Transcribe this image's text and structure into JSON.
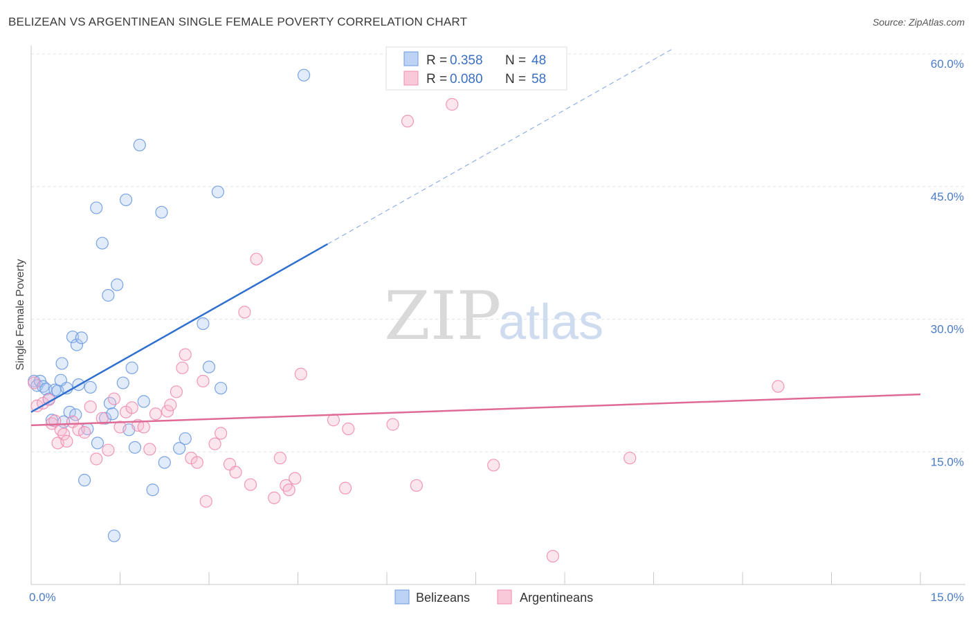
{
  "header": {
    "title": "BELIZEAN VS ARGENTINEAN SINGLE FEMALE POVERTY CORRELATION CHART",
    "source": "Source: ZipAtlas.com"
  },
  "watermark": {
    "zip": "ZIP",
    "atlas": "atlas"
  },
  "legend_top": [
    {
      "r_label": "R = ",
      "r_value": "0.358",
      "n_label": "N = ",
      "n_value": "48"
    },
    {
      "r_label": "R = ",
      "r_value": "0.080",
      "n_label": "N = ",
      "n_value": "58"
    }
  ],
  "chart_data": {
    "type": "scatter",
    "title": "BELIZEAN VS ARGENTINEAN SINGLE FEMALE POVERTY CORRELATION CHART",
    "ylabel": "Single Female Poverty",
    "xlabel": "",
    "xlim": [
      0,
      15
    ],
    "ylim": [
      0,
      60
    ],
    "x_tick_labels": [
      {
        "value": 0,
        "label": "0.0%"
      },
      {
        "value": 15,
        "label": "15.0%"
      }
    ],
    "y_tick_labels": [
      {
        "value": 15,
        "label": "15.0%"
      },
      {
        "value": 30,
        "label": "30.0%"
      },
      {
        "value": 45,
        "label": "45.0%"
      },
      {
        "value": 60,
        "label": "60.0%"
      }
    ],
    "grid": true,
    "legend_position": "top-center",
    "colors": {
      "belizeans": "#6b9ae0",
      "argentineans": "#f08cb0",
      "belizeans_line": "#2e6fd0",
      "argentineans_line": "#e06a96"
    },
    "series": [
      {
        "name": "Belizeans",
        "points": [
          [
            0.05,
            23.0
          ],
          [
            0.1,
            22.5
          ],
          [
            0.15,
            23.0
          ],
          [
            0.2,
            22.4
          ],
          [
            0.25,
            22.1
          ],
          [
            0.3,
            21.0
          ],
          [
            0.35,
            18.6
          ],
          [
            0.4,
            22.0
          ],
          [
            0.45,
            21.9
          ],
          [
            0.5,
            23.1
          ],
          [
            0.52,
            25.0
          ],
          [
            0.55,
            18.4
          ],
          [
            0.6,
            22.2
          ],
          [
            0.65,
            19.5
          ],
          [
            0.7,
            28.0
          ],
          [
            0.75,
            19.2
          ],
          [
            0.77,
            27.1
          ],
          [
            0.8,
            22.6
          ],
          [
            0.85,
            27.9
          ],
          [
            0.9,
            11.8
          ],
          [
            0.95,
            17.6
          ],
          [
            1.0,
            22.3
          ],
          [
            1.1,
            42.6
          ],
          [
            1.12,
            16.0
          ],
          [
            1.2,
            38.6
          ],
          [
            1.25,
            18.8
          ],
          [
            1.3,
            32.7
          ],
          [
            1.33,
            20.5
          ],
          [
            1.37,
            19.3
          ],
          [
            1.45,
            33.9
          ],
          [
            1.55,
            22.8
          ],
          [
            1.6,
            43.5
          ],
          [
            1.65,
            17.5
          ],
          [
            1.7,
            24.5
          ],
          [
            1.75,
            15.5
          ],
          [
            1.83,
            49.7
          ],
          [
            1.9,
            20.7
          ],
          [
            2.05,
            10.7
          ],
          [
            2.2,
            42.1
          ],
          [
            2.25,
            13.8
          ],
          [
            2.5,
            15.4
          ],
          [
            2.6,
            16.5
          ],
          [
            2.9,
            29.5
          ],
          [
            3.0,
            24.6
          ],
          [
            3.15,
            44.4
          ],
          [
            3.2,
            22.2
          ],
          [
            4.6,
            57.6
          ],
          [
            1.4,
            5.5
          ]
        ],
        "trend": {
          "x_start": 0.0,
          "y_start": 19.5,
          "x_solid_end": 5.0,
          "y_solid_end": 38.5,
          "x_dashed_end": 10.8,
          "y_dashed_end": 60.5
        }
      },
      {
        "name": "Argentineans",
        "points": [
          [
            0.05,
            22.8
          ],
          [
            0.1,
            20.2
          ],
          [
            0.2,
            20.5
          ],
          [
            0.3,
            20.9
          ],
          [
            0.35,
            18.2
          ],
          [
            0.4,
            18.5
          ],
          [
            0.45,
            16.0
          ],
          [
            0.5,
            17.5
          ],
          [
            0.55,
            17.0
          ],
          [
            0.6,
            16.2
          ],
          [
            0.7,
            18.4
          ],
          [
            0.8,
            17.5
          ],
          [
            0.9,
            17.2
          ],
          [
            1.0,
            20.1
          ],
          [
            1.1,
            14.2
          ],
          [
            1.2,
            18.8
          ],
          [
            1.3,
            15.2
          ],
          [
            1.4,
            21.0
          ],
          [
            1.5,
            17.8
          ],
          [
            1.6,
            19.5
          ],
          [
            1.7,
            20.0
          ],
          [
            1.8,
            18.0
          ],
          [
            1.9,
            17.8
          ],
          [
            2.0,
            15.3
          ],
          [
            2.1,
            19.3
          ],
          [
            2.3,
            19.6
          ],
          [
            2.35,
            20.3
          ],
          [
            2.45,
            21.8
          ],
          [
            2.55,
            24.5
          ],
          [
            2.6,
            26.0
          ],
          [
            2.7,
            14.3
          ],
          [
            2.8,
            13.8
          ],
          [
            2.9,
            23.0
          ],
          [
            2.95,
            9.4
          ],
          [
            3.1,
            15.9
          ],
          [
            3.2,
            17.1
          ],
          [
            3.35,
            13.6
          ],
          [
            3.45,
            12.7
          ],
          [
            3.6,
            30.8
          ],
          [
            3.7,
            11.3
          ],
          [
            3.8,
            36.8
          ],
          [
            4.1,
            9.8
          ],
          [
            4.2,
            14.3
          ],
          [
            4.3,
            11.2
          ],
          [
            4.35,
            10.7
          ],
          [
            4.45,
            12.0
          ],
          [
            4.55,
            23.8
          ],
          [
            5.1,
            18.6
          ],
          [
            5.3,
            10.9
          ],
          [
            5.35,
            17.6
          ],
          [
            6.1,
            18.1
          ],
          [
            6.35,
            52.4
          ],
          [
            6.5,
            11.2
          ],
          [
            7.1,
            54.3
          ],
          [
            7.8,
            13.5
          ],
          [
            8.8,
            3.2
          ],
          [
            10.1,
            14.3
          ],
          [
            12.6,
            22.4
          ]
        ],
        "trend": {
          "x_start": 0.0,
          "y_start": 18.0,
          "x_end": 15.0,
          "y_end": 21.5
        }
      }
    ]
  },
  "legend_bottom": [
    {
      "label": "Belizeans"
    },
    {
      "label": "Argentineans"
    }
  ]
}
